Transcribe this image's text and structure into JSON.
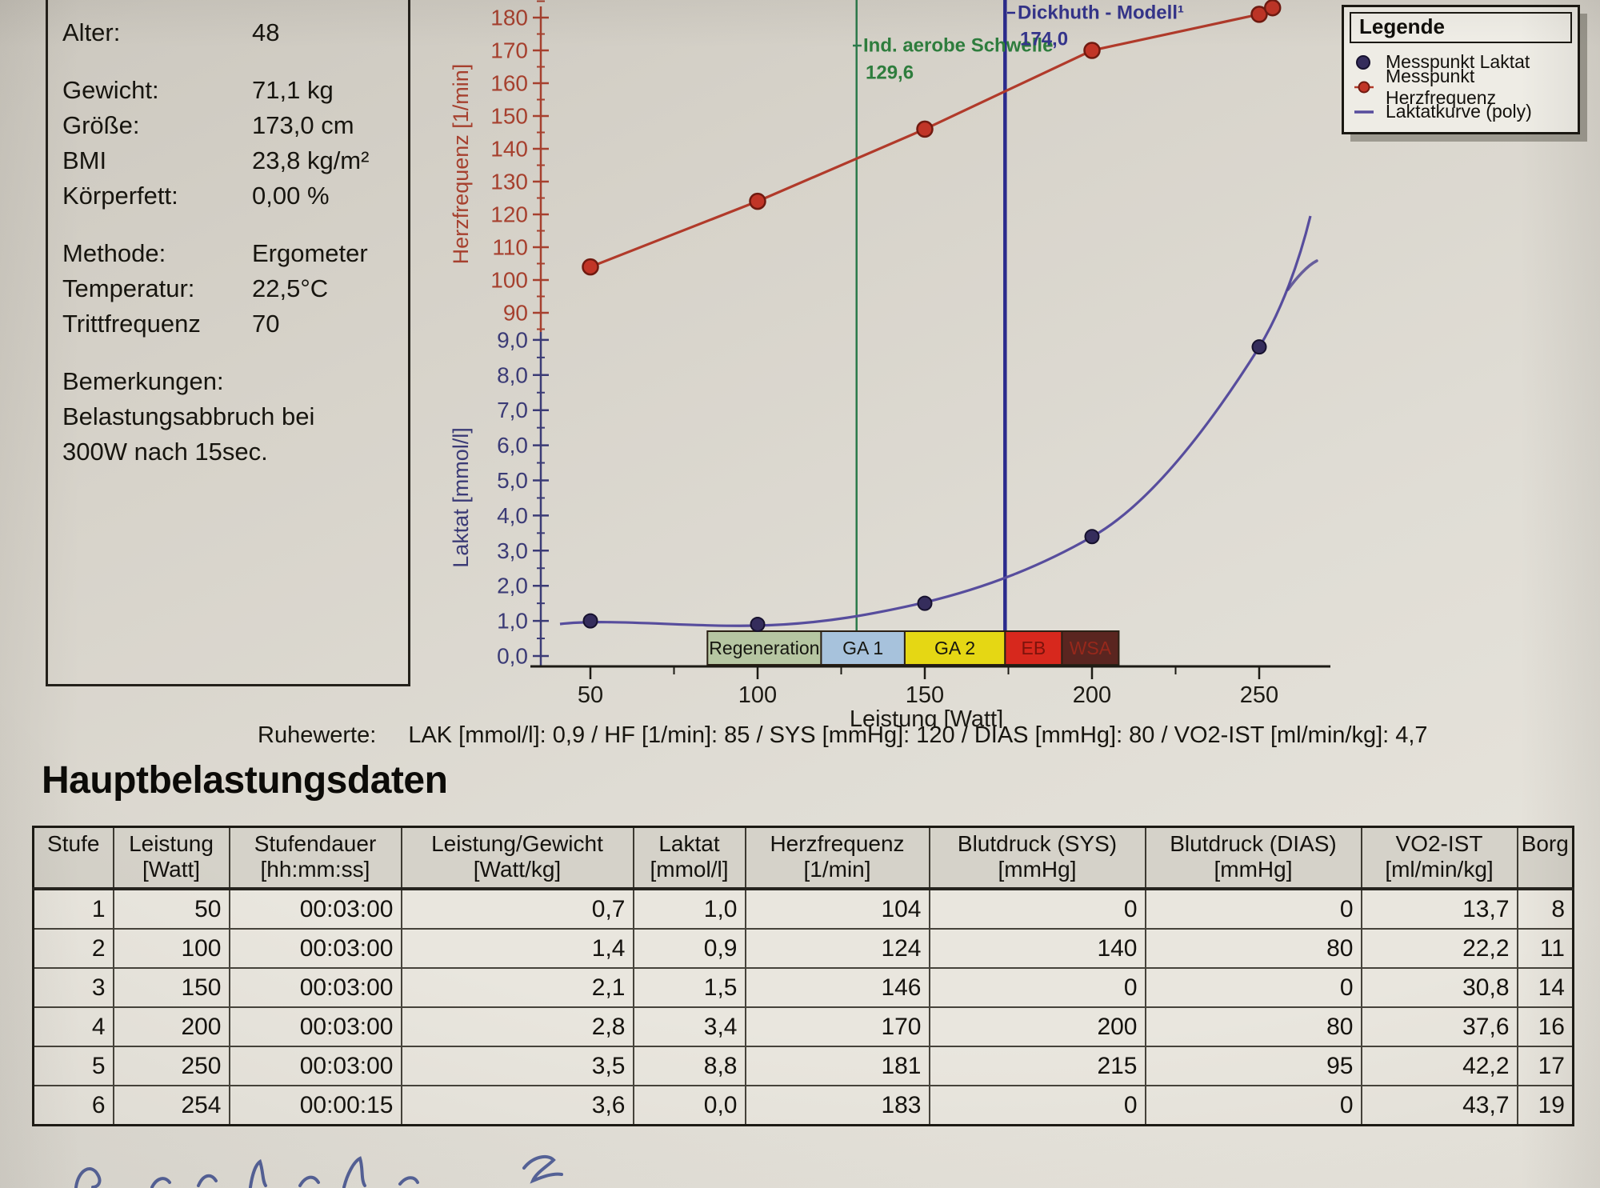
{
  "info_panel": {
    "rows": [
      {
        "label": "Alter:",
        "value": "48"
      },
      {
        "gap": true
      },
      {
        "label": "Gewicht:",
        "value": "71,1 kg"
      },
      {
        "label": "Größe:",
        "value": "173,0 cm"
      },
      {
        "label": "BMI",
        "value": "23,8 kg/m²"
      },
      {
        "label": "Körperfett:",
        "value": "0,00 %"
      },
      {
        "gap": true
      },
      {
        "label": "Methode:",
        "value": "Ergometer"
      },
      {
        "label": "Temperatur:",
        "value": "22,5°C"
      },
      {
        "label": "Trittfrequenz",
        "value": "70"
      },
      {
        "gap": true
      },
      {
        "full": "Bemerkungen:"
      },
      {
        "full": "Belastungsabbruch bei"
      },
      {
        "full": "300W nach 15sec."
      }
    ]
  },
  "chart_data": {
    "type": "line",
    "xlabel": "Leistung [Watt]",
    "x_ticks": [
      "50",
      "100",
      "150",
      "200",
      "250"
    ],
    "x_minor_ticks": [
      75,
      125,
      175,
      225
    ],
    "hr_axis": {
      "label": "Herzfrequenz [1/min]",
      "range": [
        85,
        185
      ],
      "tick_labels": [
        "180",
        "170",
        "160",
        "150",
        "140",
        "130",
        "120",
        "110",
        "100",
        "90"
      ],
      "color": "#a6402e"
    },
    "laktat_axis": {
      "label": "Laktat [mmol/l]",
      "range": [
        0,
        9.5
      ],
      "tick_labels": [
        "9,0",
        "8,0",
        "7,0",
        "6,0",
        "5,0",
        "4,0",
        "3,0",
        "2,0",
        "1,0",
        "0,0"
      ],
      "color": "#3b3b76"
    },
    "x": [
      50,
      100,
      150,
      200,
      250,
      254
    ],
    "series": [
      {
        "name": "Messpunkt Herzfrequenz",
        "axis": "hr",
        "x": [
          50,
          100,
          150,
          200,
          250,
          254
        ],
        "values": [
          104,
          124,
          146,
          170,
          181,
          183
        ],
        "color": "#b13a2a",
        "point_color": "#c13527",
        "point_edge": "#701a10"
      },
      {
        "name": "Messpunkt Laktat",
        "axis": "laktat",
        "x": [
          50,
          100,
          150,
          200,
          250
        ],
        "values": [
          1.0,
          0.9,
          1.5,
          3.4,
          8.8
        ],
        "point_color": "#352d5c",
        "point_edge": "#16112e"
      },
      {
        "name": "Laktatkurve (poly)",
        "axis": "laktat",
        "color": "#574d9d"
      }
    ],
    "thresholds": [
      {
        "label": "Ind. aerobe Schwelle",
        "value_label": "129,6",
        "watt": 129.6,
        "line_color": "#2c7a4b",
        "text_color": "#2e7d3d"
      },
      {
        "label": "Dickhuth - Modell¹",
        "value_label": "174,0",
        "watt": 174.0,
        "line_color": "#2b2b8d",
        "text_color": "#34348c"
      }
    ],
    "zones": [
      {
        "label": "Regeneration",
        "from": 85,
        "to": 119,
        "fill": "#b6c6a2",
        "text_color": "#161610"
      },
      {
        "label": "GA 1",
        "from": 119,
        "to": 144,
        "fill": "#a7c2dc",
        "text_color": "#161610"
      },
      {
        "label": "GA 2",
        "from": 144,
        "to": 174,
        "fill": "#e5d714",
        "text_color": "#161610"
      },
      {
        "label": "EB",
        "from": 174,
        "to": 191,
        "fill": "#d7281d",
        "text_color": "#7c130c"
      },
      {
        "label": "WSA",
        "from": 191,
        "to": 208,
        "fill": "#5a2520",
        "text_color": "#97281b"
      }
    ]
  },
  "legend": {
    "title": "Legende",
    "items": [
      {
        "label": "Messpunkt Laktat"
      },
      {
        "label": "Messpunkt Herzfrequenz"
      },
      {
        "label": "Laktatkurve (poly)"
      }
    ]
  },
  "ruhewerte": {
    "label": "Ruhewerte:",
    "value": "LAK [mmol/l]: 0,9 / HF [1/min]: 85 / SYS [mmHg]: 120 / DIAS [mmHg]: 80 / VO2-IST [ml/min/kg]: 4,7"
  },
  "main_table": {
    "title": "Hauptbelastungsdaten",
    "columns": [
      {
        "name": "Stufe",
        "unit": ""
      },
      {
        "name": "Leistung",
        "unit": "[Watt]"
      },
      {
        "name": "Stufendauer",
        "unit": "[hh:mm:ss]"
      },
      {
        "name": "Leistung/Gewicht",
        "unit": "[Watt/kg]"
      },
      {
        "name": "Laktat",
        "unit": "[mmol/l]"
      },
      {
        "name": "Herzfrequenz",
        "unit": "[1/min]"
      },
      {
        "name": "Blutdruck (SYS)",
        "unit": "[mmHg]"
      },
      {
        "name": "Blutdruck (DIAS)",
        "unit": "[mmHg]"
      },
      {
        "name": "VO2-IST",
        "unit": "[ml/min/kg]"
      },
      {
        "name": "Borg",
        "unit": ""
      }
    ],
    "rows": [
      [
        "1",
        "50",
        "00:03:00",
        "0,7",
        "1,0",
        "104",
        "0",
        "0",
        "13,7",
        "8"
      ],
      [
        "2",
        "100",
        "00:03:00",
        "1,4",
        "0,9",
        "124",
        "140",
        "80",
        "22,2",
        "11"
      ],
      [
        "3",
        "150",
        "00:03:00",
        "2,1",
        "1,5",
        "146",
        "0",
        "0",
        "30,8",
        "14"
      ],
      [
        "4",
        "200",
        "00:03:00",
        "2,8",
        "3,4",
        "170",
        "200",
        "80",
        "37,6",
        "16"
      ],
      [
        "5",
        "250",
        "00:03:00",
        "3,5",
        "8,8",
        "181",
        "215",
        "95",
        "42,2",
        "17"
      ],
      [
        "6",
        "254",
        "00:00:15",
        "3,6",
        "0,0",
        "183",
        "0",
        "0",
        "43,7",
        "19"
      ]
    ]
  }
}
